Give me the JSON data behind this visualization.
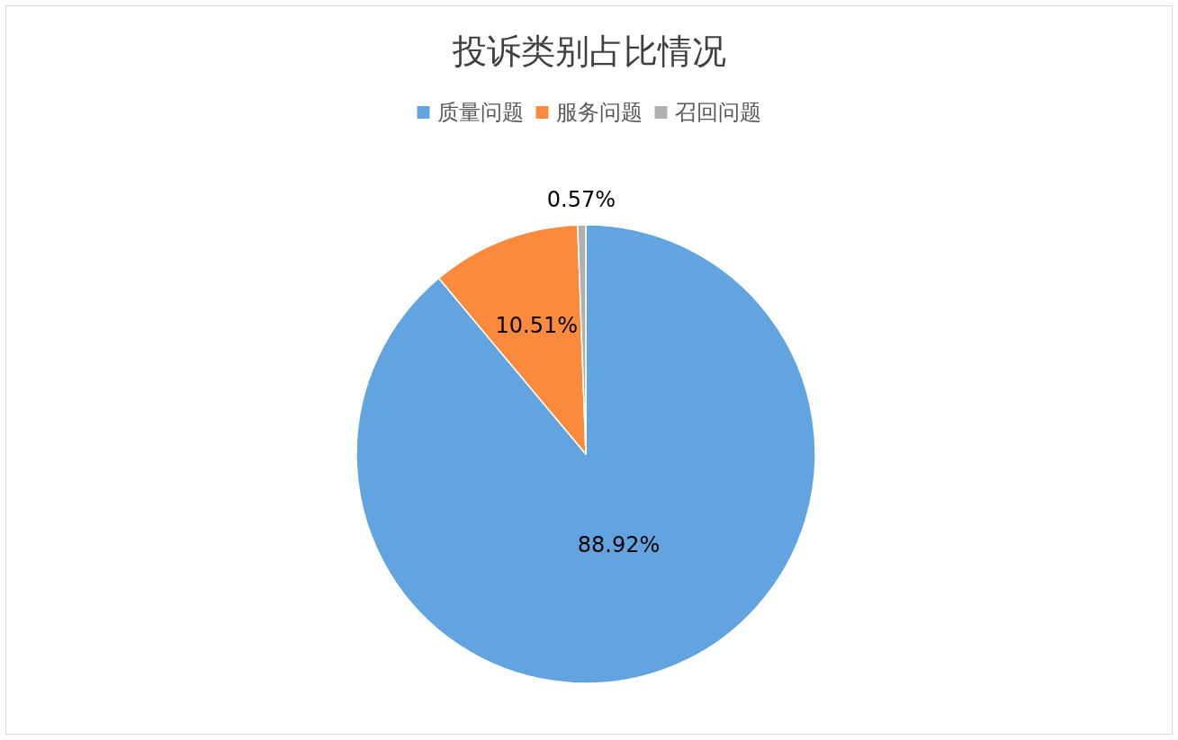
{
  "chart_data": {
    "type": "pie",
    "title": "投诉类别占比情况",
    "categories": [
      "质量问题",
      "服务问题",
      "召回问题"
    ],
    "values": [
      88.92,
      10.51,
      0.57
    ],
    "colors": [
      "#62a4e0",
      "#fb8a3c",
      "#b0b0b0"
    ],
    "value_labels": [
      "88.92%",
      "10.51%",
      "0.57%"
    ],
    "legend": "top"
  }
}
